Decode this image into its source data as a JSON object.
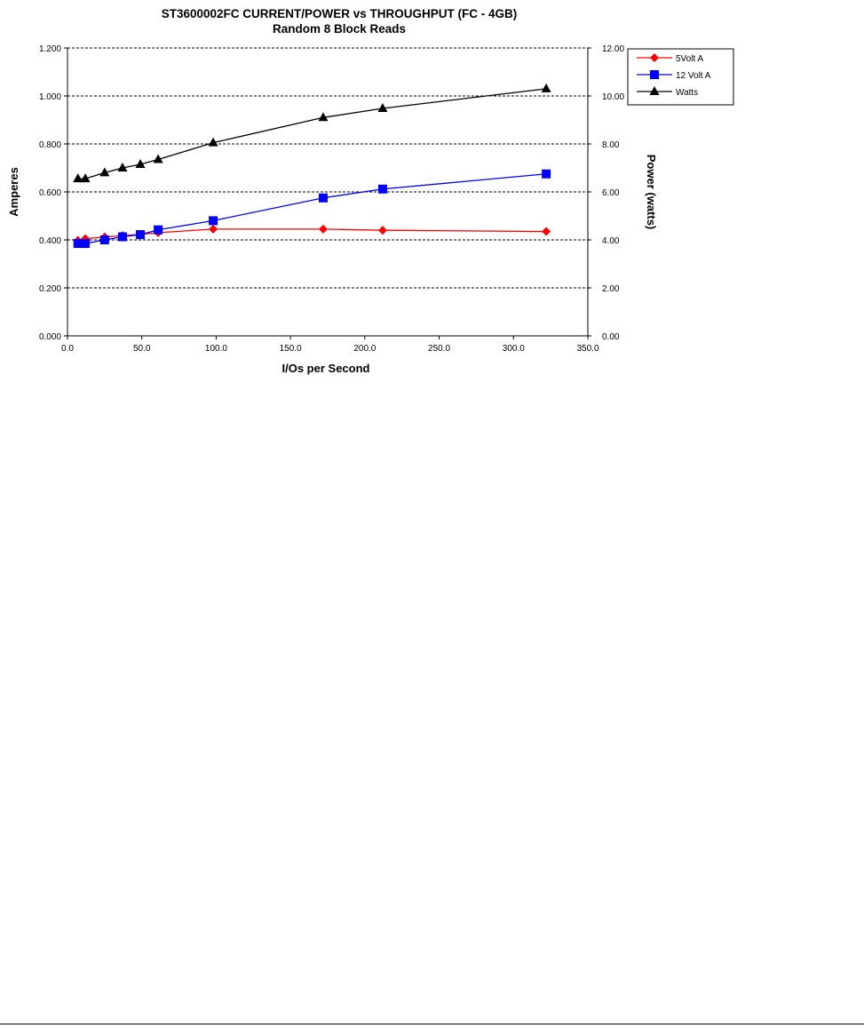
{
  "chart_data": {
    "type": "line",
    "title": "ST3600002FC CURRENT/POWER vs THROUGHPUT (FC - 4GB)",
    "subtitle": "Random 8 Block Reads",
    "xlabel": "I/Os per Second",
    "ylabel_left": "Amperes",
    "ylabel_right": "Power (watts)",
    "xlim": [
      0,
      350
    ],
    "ylim_left": [
      0,
      1.2
    ],
    "ylim_right": [
      0,
      12
    ],
    "x_ticks": [
      "0.0",
      "50.0",
      "100.0",
      "150.0",
      "200.0",
      "250.0",
      "300.0",
      "350.0"
    ],
    "y_ticks_left": [
      "0.000",
      "0.200",
      "0.400",
      "0.600",
      "0.800",
      "1.000",
      "1.200"
    ],
    "y_ticks_right": [
      "0.00",
      "2.00",
      "4.00",
      "6.00",
      "8.00",
      "10.00",
      "12.00"
    ],
    "grid": "horizontal dashed",
    "legend_position": "top-right outside",
    "x": [
      7,
      12,
      25,
      37,
      49,
      61,
      98,
      172,
      212,
      322
    ],
    "series": [
      {
        "name": "5Volt A",
        "axis": "left",
        "color": "#ff0000",
        "marker": "diamond",
        "values": [
          0.398,
          0.405,
          0.412,
          0.418,
          0.423,
          0.43,
          0.445,
          0.445,
          0.44,
          0.435
        ]
      },
      {
        "name": "12 Volt A",
        "axis": "left",
        "color": "#0000ff",
        "marker": "square",
        "values": [
          0.385,
          0.385,
          0.4,
          0.413,
          0.422,
          0.442,
          0.48,
          0.575,
          0.612,
          0.675
        ]
      },
      {
        "name": "Watts",
        "axis": "right",
        "color": "#000000",
        "marker": "triangle",
        "values": [
          6.55,
          6.55,
          6.8,
          7.0,
          7.15,
          7.35,
          8.05,
          9.1,
          9.48,
          10.3
        ]
      }
    ]
  }
}
